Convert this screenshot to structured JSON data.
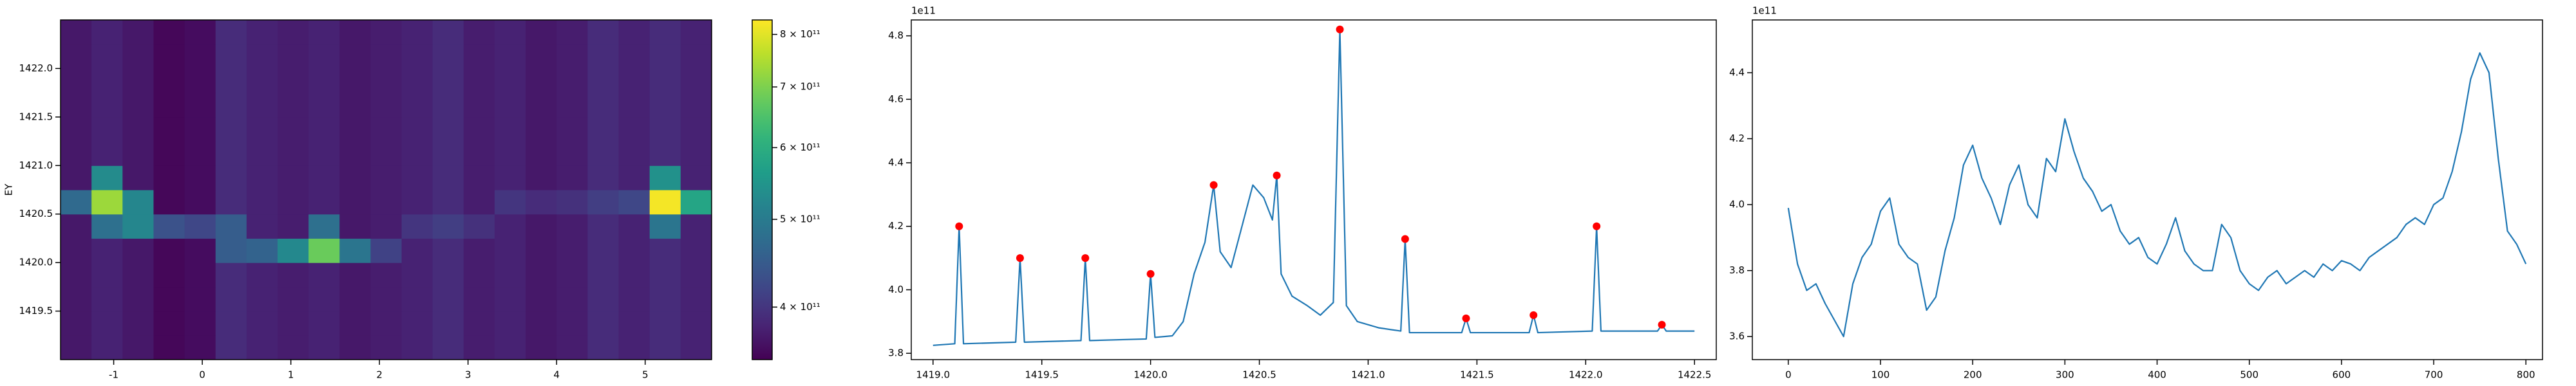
{
  "chart_data": [
    {
      "type": "heatmap",
      "ylabel": "EY",
      "colormap": "viridis",
      "color_scale": "log",
      "xlim": [
        -1.6,
        5.75
      ],
      "xticks": [
        -1,
        0,
        1,
        2,
        3,
        4,
        5
      ],
      "ylim": [
        1419.0,
        1422.5
      ],
      "yticks": [
        1419.5,
        {
          "value": 1420.0,
          "label": "1420.0"
        },
        1420.5,
        {
          "value": 1421.0,
          "label": "1421.0"
        },
        1421.5,
        {
          "value": 1422.0,
          "label": "1422.0"
        }
      ],
      "clim": [
        350000000000.0,
        830000000000.0
      ],
      "cticks": [
        {
          "value": 400000000000.0,
          "label": "4 × 10¹¹"
        },
        {
          "value": 500000000000.0,
          "label": "5 × 10¹¹"
        },
        {
          "value": 600000000000.0,
          "label": "6 × 10¹¹"
        },
        {
          "value": 700000000000.0,
          "label": "7 × 10¹¹"
        },
        {
          "value": 800000000000.0,
          "label": "8 × 10¹¹"
        }
      ],
      "x": [
        -1.425,
        -1.075,
        -0.725,
        -0.375,
        -0.025,
        0.325,
        0.675,
        1.025,
        1.375,
        1.725,
        2.075,
        2.425,
        2.775,
        3.125,
        3.475,
        3.825,
        4.175,
        4.525,
        4.875,
        5.225,
        5.575
      ],
      "y": [
        1419.125,
        1419.375,
        1419.625,
        1419.875,
        1420.125,
        1420.375,
        1420.625,
        1420.875,
        1421.125,
        1421.375,
        1421.625,
        1421.875,
        1422.125,
        1422.375
      ],
      "z": [
        [
          370000000000.0,
          380000000000.0,
          370000000000.0,
          355000000000.0,
          360000000000.0,
          390000000000.0,
          380000000000.0,
          375000000000.0,
          380000000000.0,
          370000000000.0,
          375000000000.0,
          380000000000.0,
          390000000000.0,
          375000000000.0,
          380000000000.0,
          370000000000.0,
          375000000000.0,
          390000000000.0,
          380000000000.0,
          390000000000.0,
          380000000000.0
        ],
        [
          370000000000.0,
          380000000000.0,
          370000000000.0,
          355000000000.0,
          360000000000.0,
          390000000000.0,
          380000000000.0,
          375000000000.0,
          380000000000.0,
          370000000000.0,
          375000000000.0,
          380000000000.0,
          390000000000.0,
          375000000000.0,
          380000000000.0,
          370000000000.0,
          375000000000.0,
          390000000000.0,
          380000000000.0,
          390000000000.0,
          380000000000.0
        ],
        [
          370000000000.0,
          380000000000.0,
          370000000000.0,
          355000000000.0,
          360000000000.0,
          390000000000.0,
          380000000000.0,
          375000000000.0,
          380000000000.0,
          370000000000.0,
          375000000000.0,
          380000000000.0,
          390000000000.0,
          375000000000.0,
          380000000000.0,
          370000000000.0,
          375000000000.0,
          390000000000.0,
          380000000000.0,
          390000000000.0,
          380000000000.0
        ],
        [
          370000000000.0,
          380000000000.0,
          370000000000.0,
          355000000000.0,
          360000000000.0,
          390000000000.0,
          380000000000.0,
          375000000000.0,
          380000000000.0,
          370000000000.0,
          375000000000.0,
          380000000000.0,
          390000000000.0,
          375000000000.0,
          380000000000.0,
          370000000000.0,
          375000000000.0,
          390000000000.0,
          380000000000.0,
          390000000000.0,
          380000000000.0
        ],
        [
          370000000000.0,
          380000000000.0,
          370000000000.0,
          355000000000.0,
          360000000000.0,
          450000000000.0,
          460000000000.0,
          525000000000.0,
          680000000000.0,
          490000000000.0,
          415000000000.0,
          380000000000.0,
          390000000000.0,
          375000000000.0,
          380000000000.0,
          370000000000.0,
          375000000000.0,
          390000000000.0,
          380000000000.0,
          390000000000.0,
          380000000000.0
        ],
        [
          370000000000.0,
          480000000000.0,
          520000000000.0,
          435000000000.0,
          420000000000.0,
          450000000000.0,
          380000000000.0,
          375000000000.0,
          480000000000.0,
          370000000000.0,
          375000000000.0,
          400000000000.0,
          410000000000.0,
          395000000000.0,
          380000000000.0,
          370000000000.0,
          375000000000.0,
          390000000000.0,
          380000000000.0,
          490000000000.0,
          380000000000.0
        ],
        [
          470000000000.0,
          730000000000.0,
          520000000000.0,
          355000000000.0,
          360000000000.0,
          390000000000.0,
          380000000000.0,
          375000000000.0,
          380000000000.0,
          370000000000.0,
          375000000000.0,
          380000000000.0,
          390000000000.0,
          375000000000.0,
          400000000000.0,
          390000000000.0,
          395000000000.0,
          410000000000.0,
          420000000000.0,
          820000000000.0,
          580000000000.0
        ],
        [
          370000000000.0,
          530000000000.0,
          370000000000.0,
          355000000000.0,
          360000000000.0,
          390000000000.0,
          380000000000.0,
          375000000000.0,
          380000000000.0,
          370000000000.0,
          375000000000.0,
          380000000000.0,
          390000000000.0,
          375000000000.0,
          380000000000.0,
          370000000000.0,
          375000000000.0,
          390000000000.0,
          380000000000.0,
          540000000000.0,
          380000000000.0
        ],
        [
          370000000000.0,
          380000000000.0,
          370000000000.0,
          355000000000.0,
          360000000000.0,
          390000000000.0,
          380000000000.0,
          375000000000.0,
          380000000000.0,
          370000000000.0,
          375000000000.0,
          380000000000.0,
          390000000000.0,
          375000000000.0,
          380000000000.0,
          370000000000.0,
          375000000000.0,
          390000000000.0,
          380000000000.0,
          390000000000.0,
          380000000000.0
        ],
        [
          370000000000.0,
          380000000000.0,
          370000000000.0,
          355000000000.0,
          360000000000.0,
          390000000000.0,
          380000000000.0,
          375000000000.0,
          380000000000.0,
          370000000000.0,
          375000000000.0,
          380000000000.0,
          390000000000.0,
          375000000000.0,
          380000000000.0,
          370000000000.0,
          375000000000.0,
          390000000000.0,
          380000000000.0,
          390000000000.0,
          380000000000.0
        ],
        [
          370000000000.0,
          380000000000.0,
          370000000000.0,
          355000000000.0,
          360000000000.0,
          390000000000.0,
          380000000000.0,
          375000000000.0,
          380000000000.0,
          370000000000.0,
          375000000000.0,
          380000000000.0,
          390000000000.0,
          375000000000.0,
          380000000000.0,
          370000000000.0,
          375000000000.0,
          390000000000.0,
          380000000000.0,
          390000000000.0,
          380000000000.0
        ],
        [
          370000000000.0,
          380000000000.0,
          370000000000.0,
          355000000000.0,
          360000000000.0,
          390000000000.0,
          380000000000.0,
          375000000000.0,
          380000000000.0,
          370000000000.0,
          375000000000.0,
          380000000000.0,
          390000000000.0,
          375000000000.0,
          380000000000.0,
          370000000000.0,
          375000000000.0,
          390000000000.0,
          380000000000.0,
          390000000000.0,
          380000000000.0
        ],
        [
          370000000000.0,
          380000000000.0,
          370000000000.0,
          355000000000.0,
          360000000000.0,
          390000000000.0,
          380000000000.0,
          375000000000.0,
          380000000000.0,
          370000000000.0,
          375000000000.0,
          380000000000.0,
          390000000000.0,
          375000000000.0,
          380000000000.0,
          370000000000.0,
          375000000000.0,
          390000000000.0,
          380000000000.0,
          390000000000.0,
          380000000000.0
        ],
        [
          370000000000.0,
          380000000000.0,
          370000000000.0,
          355000000000.0,
          360000000000.0,
          390000000000.0,
          380000000000.0,
          375000000000.0,
          380000000000.0,
          370000000000.0,
          375000000000.0,
          380000000000.0,
          390000000000.0,
          375000000000.0,
          380000000000.0,
          370000000000.0,
          375000000000.0,
          390000000000.0,
          380000000000.0,
          390000000000.0,
          380000000000.0
        ]
      ]
    },
    {
      "type": "line",
      "offset_text": "1e11",
      "xlim": [
        1418.9,
        1422.6
      ],
      "xticks": [
        {
          "value": 1419.0,
          "label": "1419.0"
        },
        1419.5,
        {
          "value": 1420.0,
          "label": "1420.0"
        },
        1420.5,
        {
          "value": 1421.0,
          "label": "1421.0"
        },
        1421.5,
        {
          "value": 1422.0,
          "label": "1422.0"
        },
        1422.5
      ],
      "ylim": [
        3.78,
        4.85
      ],
      "yticks": [
        3.8,
        {
          "value": 4.0,
          "label": "4.0"
        },
        4.2,
        4.4,
        4.6,
        4.8
      ],
      "series": [
        {
          "color": "#1f77b4",
          "marker": "none",
          "x": [
            1419.0,
            1419.1,
            1419.12,
            1419.14,
            1419.38,
            1419.4,
            1419.42,
            1419.68,
            1419.7,
            1419.72,
            1419.98,
            1420.0,
            1420.02,
            1420.1,
            1420.15,
            1420.2,
            1420.25,
            1420.29,
            1420.32,
            1420.37,
            1420.42,
            1420.47,
            1420.52,
            1420.56,
            1420.58,
            1420.6,
            1420.65,
            1420.72,
            1420.78,
            1420.84,
            1420.87,
            1420.9,
            1420.95,
            1421.05,
            1421.15,
            1421.17,
            1421.19,
            1421.43,
            1421.45,
            1421.47,
            1421.74,
            1421.76,
            1421.78,
            1422.03,
            1422.05,
            1422.07,
            1422.33,
            1422.35,
            1422.37,
            1422.5
          ],
          "values": [
            3.825,
            3.83,
            4.2,
            3.83,
            3.835,
            4.1,
            3.835,
            3.84,
            4.1,
            3.84,
            3.845,
            4.05,
            3.85,
            3.855,
            3.9,
            4.05,
            4.15,
            4.33,
            4.12,
            4.07,
            4.2,
            4.33,
            4.29,
            4.22,
            4.36,
            4.05,
            3.98,
            3.95,
            3.92,
            3.96,
            4.82,
            3.95,
            3.9,
            3.88,
            3.87,
            4.16,
            3.865,
            3.865,
            3.91,
            3.865,
            3.865,
            3.92,
            3.865,
            3.87,
            4.2,
            3.87,
            3.87,
            3.89,
            3.87,
            3.87
          ]
        },
        {
          "color": "#ff0000",
          "marker": "o",
          "x": [
            1419.12,
            1419.4,
            1419.7,
            1420.0,
            1420.29,
            1420.58,
            1420.87,
            1421.17,
            1421.45,
            1421.76,
            1422.05,
            1422.35
          ],
          "values": [
            4.2,
            4.1,
            4.1,
            4.05,
            4.33,
            4.36,
            4.82,
            4.16,
            3.91,
            3.92,
            4.2,
            3.89
          ]
        }
      ]
    },
    {
      "type": "line",
      "offset_text": "1e11",
      "xlim": [
        -39,
        818
      ],
      "xticks": [
        0,
        100,
        200,
        300,
        400,
        500,
        600,
        700,
        800
      ],
      "ylim": [
        3.53,
        4.56
      ],
      "yticks": [
        3.6,
        3.8,
        {
          "value": 4.0,
          "label": "4.0"
        },
        4.2,
        4.4
      ],
      "series": [
        {
          "color": "#1f77b4",
          "marker": "none",
          "x": [
            0,
            10,
            20,
            30,
            40,
            50,
            60,
            70,
            80,
            90,
            100,
            110,
            120,
            130,
            140,
            150,
            160,
            170,
            180,
            190,
            200,
            210,
            220,
            230,
            240,
            250,
            260,
            270,
            280,
            290,
            300,
            310,
            320,
            330,
            340,
            350,
            360,
            370,
            380,
            390,
            400,
            410,
            420,
            430,
            440,
            450,
            460,
            470,
            480,
            490,
            500,
            510,
            520,
            530,
            540,
            550,
            560,
            570,
            580,
            590,
            600,
            610,
            620,
            630,
            640,
            650,
            660,
            670,
            680,
            690,
            700,
            710,
            720,
            730,
            740,
            750,
            760,
            770,
            780,
            790,
            800
          ],
          "values": [
            3.99,
            3.82,
            3.74,
            3.76,
            3.7,
            3.65,
            3.6,
            3.76,
            3.84,
            3.88,
            3.98,
            4.02,
            3.88,
            3.84,
            3.82,
            3.68,
            3.72,
            3.86,
            3.96,
            4.12,
            4.18,
            4.08,
            4.02,
            3.94,
            4.06,
            4.12,
            4.0,
            3.96,
            4.14,
            4.1,
            4.26,
            4.16,
            4.08,
            4.04,
            3.98,
            4.0,
            3.92,
            3.88,
            3.9,
            3.84,
            3.82,
            3.88,
            3.96,
            3.86,
            3.82,
            3.8,
            3.8,
            3.94,
            3.9,
            3.8,
            3.76,
            3.74,
            3.78,
            3.8,
            3.76,
            3.78,
            3.8,
            3.78,
            3.82,
            3.8,
            3.83,
            3.82,
            3.8,
            3.84,
            3.86,
            3.88,
            3.9,
            3.94,
            3.96,
            3.94,
            4.0,
            4.02,
            4.1,
            4.22,
            4.38,
            4.46,
            4.4,
            4.14,
            3.92,
            3.88,
            3.82
          ]
        }
      ]
    }
  ]
}
